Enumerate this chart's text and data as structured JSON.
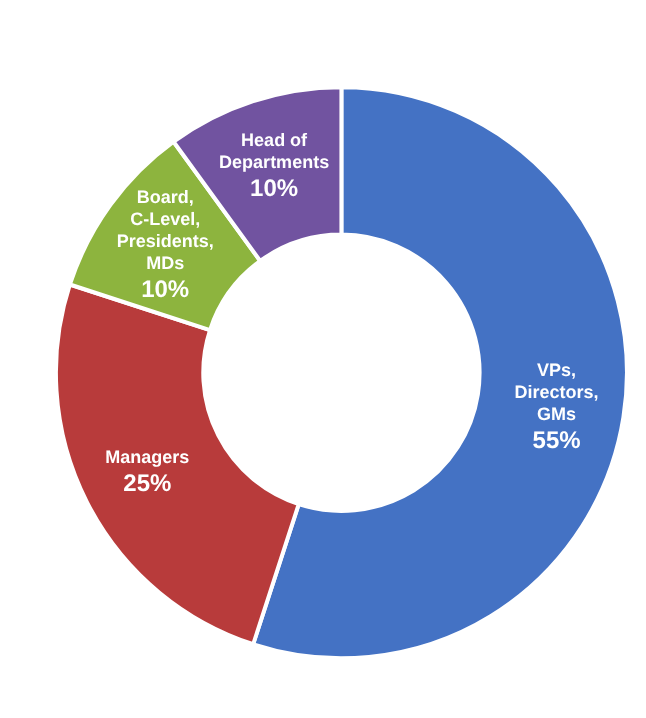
{
  "chart_data": {
    "type": "donut",
    "categories": [
      "VPs, Directors, GMs",
      "Managers",
      "Board, C-Level, Presidents, MDs",
      "Head of Departments"
    ],
    "values": [
      55,
      25,
      10,
      10
    ],
    "value_labels": [
      "55%",
      "25%",
      "10%",
      "10%"
    ],
    "colors": [
      "#4472c4",
      "#b83b3b",
      "#8db43e",
      "#7153a0"
    ],
    "data_labels": true
  }
}
